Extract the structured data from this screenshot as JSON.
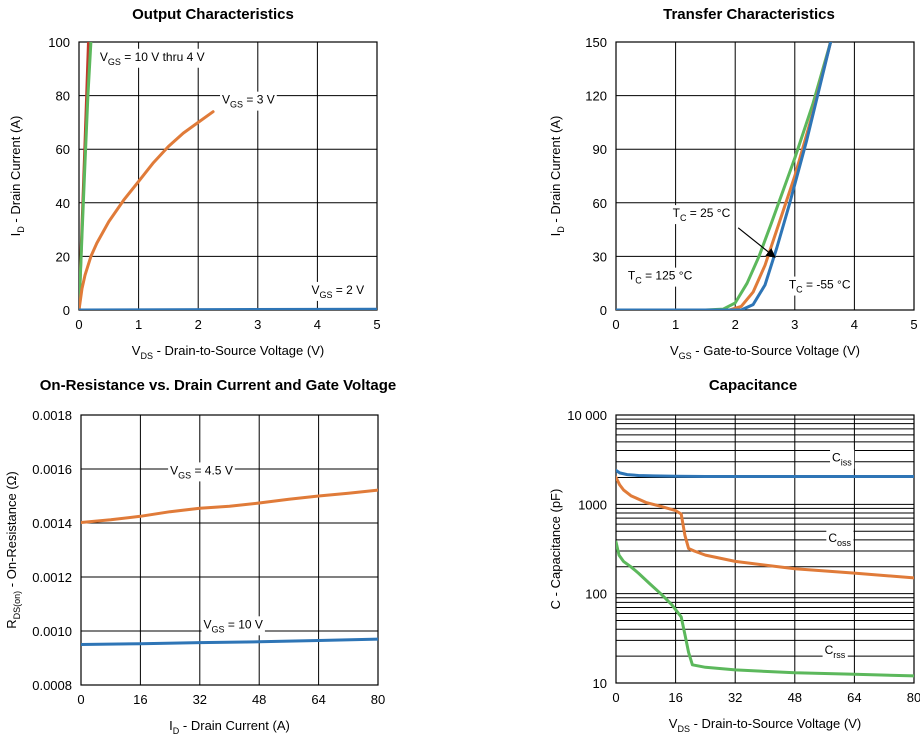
{
  "colors": {
    "blue": "#2e75b6",
    "orange": "#e07b39",
    "green": "#5cb85c",
    "red": "#c0392b",
    "grid": "#000000"
  },
  "chart_data": [
    {
      "type": "line",
      "title": "Output Characteristics",
      "xlabel": {
        "main": "V",
        "sub": "DS",
        "rest": " - Drain-to-Source Voltage (V)"
      },
      "ylabel": {
        "main": "I",
        "sub": "D",
        "rest": " - Drain Current (A)"
      },
      "xlim": [
        0,
        5
      ],
      "ylim": [
        0,
        100
      ],
      "yscale": "linear",
      "xticks": [
        0,
        1,
        2,
        3,
        4,
        5
      ],
      "yticks": [
        0,
        20,
        40,
        60,
        80,
        100
      ],
      "xtick_labels": [
        "0",
        "1",
        "2",
        "3",
        "4",
        "5"
      ],
      "ytick_labels": [
        "0",
        "20",
        "40",
        "60",
        "80",
        "100"
      ],
      "series": [
        {
          "name": "VGS = 10 V (red)",
          "color": "red",
          "x": [
            0,
            0.1,
            0.16
          ],
          "y": [
            0,
            62,
            100
          ]
        },
        {
          "name": "VGS = 4 V (green)",
          "color": "green",
          "x": [
            0,
            0.05,
            0.1,
            0.15,
            0.2
          ],
          "y": [
            0,
            28,
            55,
            80,
            100
          ]
        },
        {
          "name": "VGS = 3 V",
          "color": "orange",
          "x": [
            0,
            0.05,
            0.1,
            0.2,
            0.3,
            0.5,
            0.75,
            1.0,
            1.25,
            1.5,
            1.75,
            2.0,
            2.25
          ],
          "y": [
            0,
            8,
            13,
            20,
            25,
            33,
            41,
            48,
            55,
            61,
            66,
            70,
            74
          ]
        },
        {
          "name": "VGS = 2 V",
          "color": "blue",
          "x": [
            0,
            5
          ],
          "y": [
            0,
            0.3
          ]
        }
      ],
      "annotations": [
        {
          "main": "V",
          "sub": "GS",
          "rest": " = 10 V thru 4 V",
          "x": 0.35,
          "y": 93,
          "anchor": "start"
        },
        {
          "main": "V",
          "sub": "GS",
          "rest": " = 3 V",
          "x": 2.4,
          "y": 77,
          "anchor": "start"
        },
        {
          "main": "V",
          "sub": "GS",
          "rest": " = 2 V",
          "x": 3.9,
          "y": 6,
          "anchor": "start"
        }
      ]
    },
    {
      "type": "line",
      "title": "Transfer Characteristics",
      "xlabel": {
        "main": "V",
        "sub": "GS",
        "rest": " - Gate-to-Source Voltage (V)"
      },
      "ylabel": {
        "main": "I",
        "sub": "D",
        "rest": " - Drain Current (A)"
      },
      "xlim": [
        0,
        5
      ],
      "ylim": [
        0,
        150
      ],
      "yscale": "linear",
      "xticks": [
        0,
        1,
        2,
        3,
        4,
        5
      ],
      "yticks": [
        0,
        30,
        60,
        90,
        120,
        150
      ],
      "xtick_labels": [
        "0",
        "1",
        "2",
        "3",
        "4",
        "5"
      ],
      "ytick_labels": [
        "0",
        "30",
        "60",
        "90",
        "120",
        "150"
      ],
      "series": [
        {
          "name": "TC = 125 °C",
          "color": "green",
          "x": [
            0,
            1.5,
            1.8,
            2.0,
            2.2,
            2.4,
            2.6,
            3.0,
            3.3,
            3.6
          ],
          "y": [
            0,
            0,
            0.5,
            4,
            15,
            30,
            48,
            85,
            115,
            150
          ]
        },
        {
          "name": "TC = 25 °C",
          "color": "orange",
          "x": [
            0,
            1.9,
            2.1,
            2.3,
            2.5,
            2.7,
            3.0,
            3.3,
            3.6
          ],
          "y": [
            0,
            0,
            2,
            10,
            25,
            45,
            75,
            110,
            150
          ]
        },
        {
          "name": "TC = -55 °C",
          "color": "blue",
          "x": [
            0,
            2.1,
            2.3,
            2.5,
            2.7,
            2.9,
            3.2,
            3.6
          ],
          "y": [
            0,
            0,
            3,
            14,
            35,
            58,
            95,
            150
          ]
        }
      ],
      "annotations": [
        {
          "main": "T",
          "sub": "C",
          "rest": " = 25 °C",
          "x": 0.95,
          "y": 52,
          "anchor": "start"
        },
        {
          "main": "T",
          "sub": "C",
          "rest": " = 125 °C",
          "x": 0.2,
          "y": 17,
          "anchor": "start"
        },
        {
          "main": "T",
          "sub": "C",
          "rest": " = -55 °C",
          "x": 2.9,
          "y": 12,
          "anchor": "start"
        }
      ],
      "arrows": [
        {
          "from": [
            2.05,
            46
          ],
          "to": [
            2.65,
            30
          ]
        }
      ]
    },
    {
      "type": "line",
      "title": "On-Resistance vs. Drain Current and Gate Voltage",
      "xlabel": {
        "main": "I",
        "sub": "D",
        "rest": " - Drain Current (A)"
      },
      "ylabel": {
        "main": "R",
        "sub": "DS(on)",
        "rest": " - On-Resistance (Ω)"
      },
      "xlim": [
        0,
        80
      ],
      "ylim": [
        0.0008,
        0.0018
      ],
      "yscale": "linear",
      "xticks": [
        0,
        16,
        32,
        48,
        64,
        80
      ],
      "yticks": [
        0.0008,
        0.001,
        0.0012,
        0.0014,
        0.0016,
        0.0018
      ],
      "xtick_labels": [
        "0",
        "16",
        "32",
        "48",
        "64",
        "80"
      ],
      "ytick_labels": [
        "0.0008",
        "0.0010",
        "0.0012",
        "0.0014",
        "0.0016",
        "0.0018"
      ],
      "series": [
        {
          "name": "VGS = 4.5 V",
          "color": "orange",
          "x": [
            0,
            8,
            16,
            24,
            32,
            40,
            48,
            56,
            64,
            72,
            80
          ],
          "y": [
            0.001402,
            0.001412,
            0.001425,
            0.001442,
            0.001455,
            0.001462,
            0.001474,
            0.001488,
            0.0015,
            0.00151,
            0.001522
          ]
        },
        {
          "name": "VGS = 10 V",
          "color": "blue",
          "x": [
            0,
            16,
            32,
            48,
            64,
            80
          ],
          "y": [
            0.00095,
            0.000953,
            0.000957,
            0.00096,
            0.000965,
            0.00097
          ]
        }
      ],
      "annotations": [
        {
          "main": "V",
          "sub": "GS",
          "rest": " = 4.5 V",
          "x": 24,
          "y": 0.00158,
          "anchor": "start"
        },
        {
          "main": "V",
          "sub": "GS",
          "rest": " = 10 V",
          "x": 33,
          "y": 0.00101,
          "anchor": "start"
        }
      ]
    },
    {
      "type": "line",
      "title": "Capacitance",
      "xlabel": {
        "main": "V",
        "sub": "DS",
        "rest": " - Drain-to-Source Voltage (V)"
      },
      "ylabel": {
        "main": "C - Capacitance (pF)",
        "sub": "",
        "rest": ""
      },
      "xlim": [
        0,
        80
      ],
      "ylim": [
        10,
        10000
      ],
      "yscale": "log",
      "xticks": [
        0,
        16,
        32,
        48,
        64,
        80
      ],
      "yticks": [
        10,
        100,
        1000,
        10000
      ],
      "xtick_labels": [
        "0",
        "16",
        "32",
        "48",
        "64",
        "80"
      ],
      "ytick_labels": [
        "10",
        "100",
        "1000",
        "10 000"
      ],
      "series": [
        {
          "name": "Ciss",
          "color": "blue",
          "x": [
            0,
            1,
            3,
            6,
            10,
            16,
            24,
            40,
            60,
            80
          ],
          "y": [
            2400,
            2250,
            2150,
            2100,
            2080,
            2060,
            2050,
            2050,
            2050,
            2050
          ]
        },
        {
          "name": "Coss",
          "color": "orange",
          "x": [
            0,
            1,
            2,
            4,
            8,
            12,
            16,
            17.5,
            18.5,
            19.5,
            21,
            24,
            32,
            48,
            64,
            80
          ],
          "y": [
            2000,
            1650,
            1450,
            1250,
            1050,
            950,
            850,
            780,
            450,
            320,
            300,
            270,
            230,
            190,
            170,
            150
          ]
        },
        {
          "name": "Crss",
          "color": "green",
          "x": [
            0,
            0.8,
            2,
            4,
            6,
            9,
            12,
            15,
            17.5,
            18.5,
            19.5,
            20.5,
            24,
            32,
            48,
            64,
            80
          ],
          "y": [
            380,
            270,
            230,
            200,
            170,
            130,
            100,
            75,
            55,
            35,
            22,
            16,
            15,
            14,
            13,
            12.5,
            12
          ]
        }
      ],
      "annotations": [
        {
          "main": "C",
          "sub": "iss",
          "rest": "",
          "x": 58,
          "y": 3000,
          "anchor": "start"
        },
        {
          "main": "C",
          "sub": "oss",
          "rest": "",
          "x": 57,
          "y": 380,
          "anchor": "start"
        },
        {
          "main": "C",
          "sub": "rss",
          "rest": "",
          "x": 56,
          "y": 21,
          "anchor": "start"
        }
      ]
    }
  ]
}
